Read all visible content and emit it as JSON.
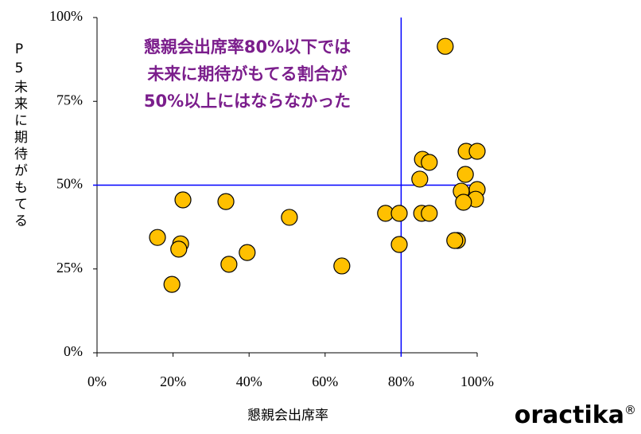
{
  "chart_data": {
    "type": "scatter",
    "annotation": [
      "懇親会出席率80%以下では",
      "未来に期待がもてる割合が",
      "50%以上にはならなかった"
    ],
    "x_label": "懇親会出席率",
    "y_label": "P5未来に期待がもてる",
    "brand": "oractika",
    "brand_mark": "®",
    "color": "#FFC000",
    "line_color": "#0000FF",
    "annotation_color": "#7B1E8C",
    "xlim": [
      0,
      100
    ],
    "ylim": [
      0,
      100
    ],
    "xticks": [
      {
        "value": 0,
        "label": "0%"
      },
      {
        "value": 20,
        "label": "20%"
      },
      {
        "value": 40,
        "label": "40%"
      },
      {
        "value": 60,
        "label": "60%"
      },
      {
        "value": 80,
        "label": "80%"
      },
      {
        "value": 100,
        "label": "100%"
      }
    ],
    "yticks": [
      {
        "value": 0,
        "label": "0%"
      },
      {
        "value": 25,
        "label": "25%"
      },
      {
        "value": 50,
        "label": "50%"
      },
      {
        "value": 75,
        "label": "75%"
      },
      {
        "value": 100,
        "label": "100%"
      }
    ],
    "vlines": [
      80
    ],
    "hlines": [
      50
    ],
    "x": [
      91.6,
      97.1,
      100,
      85.6,
      87.4,
      96.9,
      84.9,
      95.8,
      100,
      99.6,
      96.4,
      22.6,
      33.9,
      75.9,
      79.5,
      85.4,
      87.4,
      50.6,
      15.9,
      22.0,
      21.5,
      39.5,
      79.5,
      94.8,
      94.1,
      34.7,
      64.4,
      19.7
    ],
    "values": [
      91.4,
      60.1,
      60.1,
      57.7,
      56.8,
      53.2,
      51.8,
      48.2,
      48.7,
      45.8,
      44.9,
      45.6,
      45.1,
      41.6,
      41.6,
      41.6,
      41.6,
      40.4,
      34.4,
      32.5,
      30.9,
      29.9,
      32.3,
      33.5,
      33.5,
      26.4,
      25.9,
      20.4
    ]
  }
}
